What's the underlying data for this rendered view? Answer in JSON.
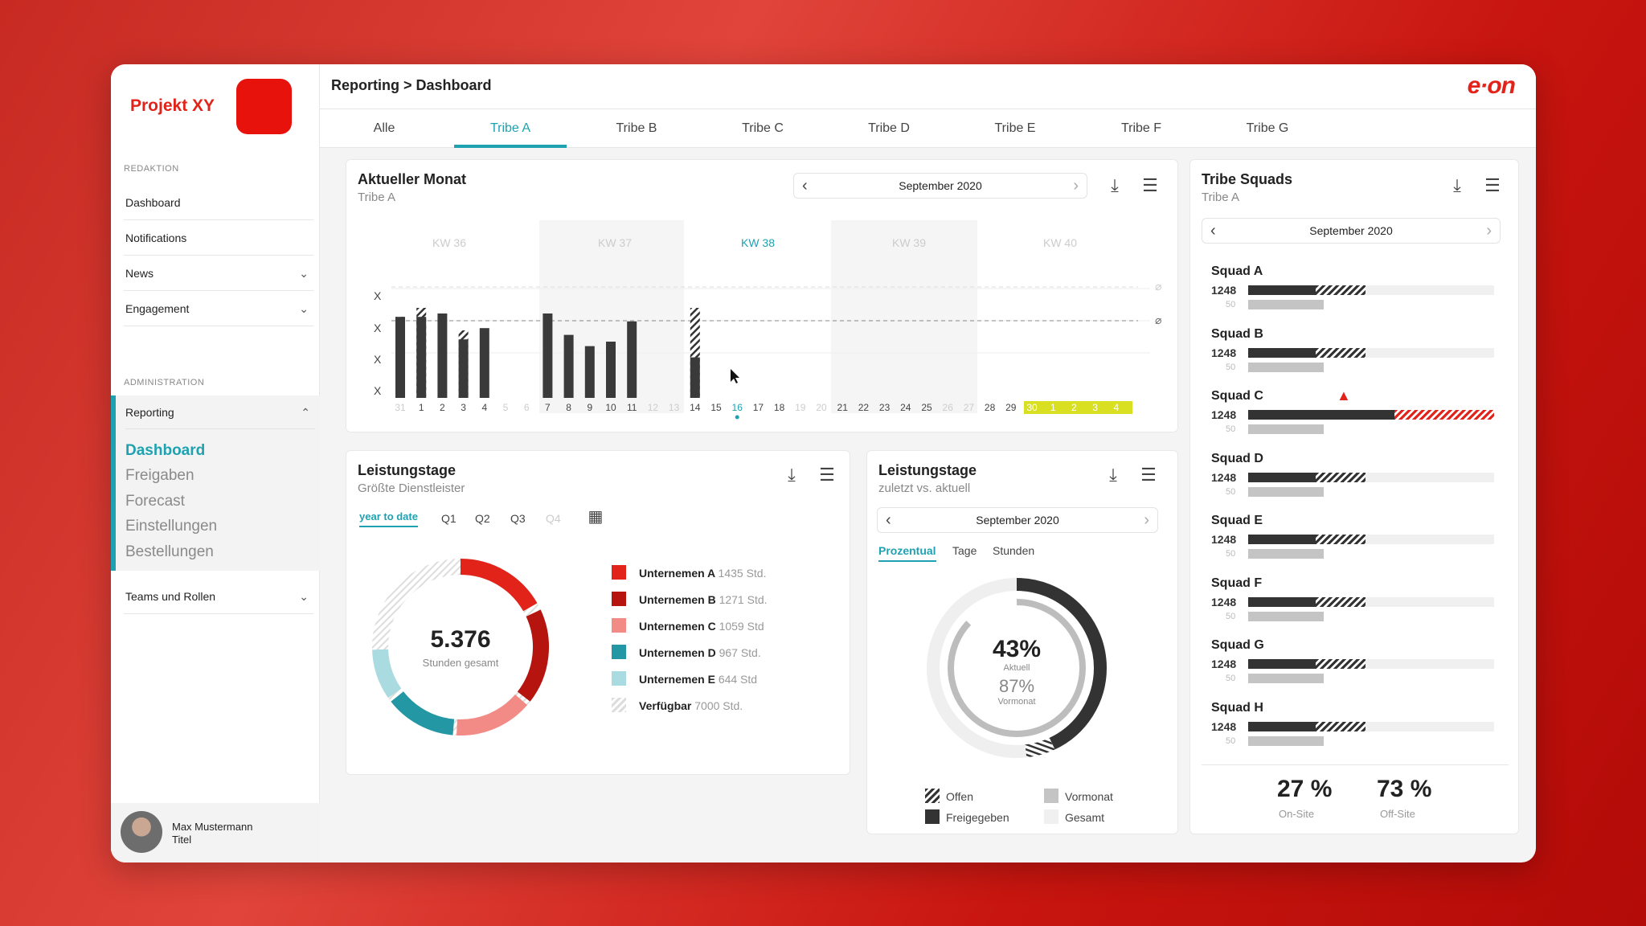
{
  "app": {
    "title": "Projekt XY",
    "breadcrumb": "Reporting > Dashboard",
    "brand": "e·on",
    "brand_color": "#e2231a",
    "accent": "#1ea2b1"
  },
  "sidebar": {
    "section1": "REDAKTION",
    "items1": [
      {
        "label": "Dashboard"
      },
      {
        "label": "Notifications"
      },
      {
        "label": "News"
      },
      {
        "label": "Engagement"
      }
    ],
    "section2": "ADMINISTRATION",
    "reporting": "Reporting",
    "sub": [
      "Dashboard",
      "Freigaben",
      "Forecast",
      "Einstellungen",
      "Bestellungen"
    ],
    "teams": "Teams und Rollen",
    "user": {
      "name": "Max Mustermann",
      "title": "Titel"
    }
  },
  "tabs": [
    "Alle",
    "Tribe A",
    "Tribe B",
    "Tribe C",
    "Tribe D",
    "Tribe E",
    "Tribe F",
    "Tribe G"
  ],
  "month_card": {
    "title": "Aktueller Monat",
    "subtitle": "Tribe A",
    "date": "September 2020",
    "weeks": [
      "KW 36",
      "KW 37",
      "KW 38",
      "KW 39",
      "KW 40"
    ],
    "ylabels": [
      "X",
      "X",
      "X",
      "X"
    ],
    "ref_marker": "⌀"
  },
  "chart_data": {
    "type": "bar",
    "categories": [
      "31",
      "1",
      "2",
      "3",
      "4",
      "5",
      "6",
      "7",
      "8",
      "9",
      "10",
      "11",
      "12",
      "13",
      "14",
      "15",
      "16",
      "17",
      "18",
      "19",
      "20",
      "21",
      "22",
      "23",
      "24",
      "25",
      "26",
      "27",
      "28",
      "29",
      "30",
      "1",
      "2",
      "3",
      "4"
    ],
    "values": [
      0.72,
      0.72,
      0.75,
      0.52,
      0.62,
      0,
      0,
      0.75,
      0.56,
      0.46,
      0.5,
      0.68,
      0,
      0,
      0.36,
      0,
      0,
      0,
      0,
      0,
      0,
      0,
      0,
      0,
      0,
      0,
      0,
      0,
      0,
      0,
      0,
      0,
      0,
      0,
      0
    ],
    "hatched": [
      0.72,
      0.8,
      0,
      0.6,
      0,
      0,
      0,
      0,
      0,
      0,
      0,
      0,
      0,
      0,
      0.8,
      0,
      0,
      0,
      0,
      0,
      0,
      0,
      0,
      0,
      0,
      0,
      0,
      0,
      0,
      0,
      0,
      0,
      0,
      0,
      0
    ],
    "dim_days": [
      "31",
      "5",
      "6",
      "12",
      "13",
      "19",
      "20",
      "26",
      "27"
    ],
    "highlight_days": [
      "30",
      "1",
      "2",
      "3",
      "4"
    ],
    "today": "16"
  },
  "leistung1": {
    "title": "Leistungstage",
    "subtitle": "Größte Dienstleister",
    "periods": [
      "year to date",
      "Q1",
      "Q2",
      "Q3",
      "Q4"
    ],
    "total": "5.376",
    "total_label": "Stunden gesamt",
    "legend": [
      {
        "name": "Unternemen A",
        "val": "1435 Std.",
        "color": "#e2231a"
      },
      {
        "name": "Unternemen B",
        "val": "1271 Std.",
        "color": "#b5140f"
      },
      {
        "name": "Unternemen C",
        "val": "1059 Std",
        "color": "#f28b86"
      },
      {
        "name": "Unternemen D",
        "val": "967 Std.",
        "color": "#2497a5"
      },
      {
        "name": "Unternemen E",
        "val": "644 Std",
        "color": "#a9dbe0"
      },
      {
        "name": "Verfügbar",
        "val": "7000 Std.",
        "color": "hatch"
      }
    ]
  },
  "leistung2": {
    "title": "Leistungstage",
    "subtitle": "zuletzt vs. aktuell",
    "date": "September 2020",
    "tabs": [
      "Prozentual",
      "Tage",
      "Stunden"
    ],
    "pct1": "43%",
    "pct1_label": "Aktuell",
    "pct2": "87%",
    "pct2_label": "Vormonat",
    "legend": [
      "Offen",
      "Vormonat",
      "Freigegeben",
      "Gesamt"
    ]
  },
  "squads_card": {
    "title": "Tribe Squads",
    "subtitle": "Tribe A",
    "date": "September 2020",
    "squads": [
      {
        "name": "Squad A",
        "value": "1248",
        "sub": "50",
        "alert": false
      },
      {
        "name": "Squad B",
        "value": "1248",
        "sub": "50",
        "alert": false
      },
      {
        "name": "Squad C",
        "value": "1248",
        "sub": "50",
        "alert": true
      },
      {
        "name": "Squad D",
        "value": "1248",
        "sub": "50",
        "alert": false
      },
      {
        "name": "Squad E",
        "value": "1248",
        "sub": "50",
        "alert": false
      },
      {
        "name": "Squad F",
        "value": "1248",
        "sub": "50",
        "alert": false
      },
      {
        "name": "Squad G",
        "value": "1248",
        "sub": "50",
        "alert": false
      },
      {
        "name": "Squad H",
        "value": "1248",
        "sub": "50",
        "alert": false
      }
    ],
    "onsite": "27 %",
    "onsite_label": "On-Site",
    "offsite": "73 %",
    "offsite_label": "Off-Site"
  }
}
